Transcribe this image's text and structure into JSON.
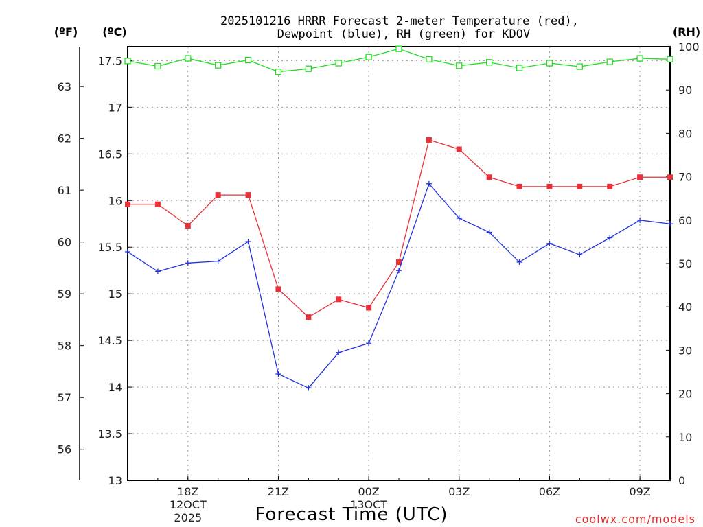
{
  "chart_data": {
    "type": "line",
    "title_lines": [
      "2025101216 HRRR Forecast 2-meter Temperature (red),",
      "Dewpoint (blue), RH (green) for KDOV"
    ],
    "units": {
      "fahrenheit": "(ºF)",
      "celsius": "(ºC)",
      "rh": "(RH)"
    },
    "xlabel": "Forecast Time (UTC)",
    "credit": "coolwx.com/models",
    "x_hours": [
      16,
      17,
      18,
      19,
      20,
      21,
      22,
      23,
      24,
      25,
      26,
      27,
      28,
      29,
      30,
      31,
      32,
      33,
      34
    ],
    "xlim": [
      16,
      34
    ],
    "x_ticks": [
      {
        "hour": 18,
        "label": "18Z",
        "sub": [
          "12OCT",
          "2025"
        ]
      },
      {
        "hour": 21,
        "label": "21Z",
        "sub": []
      },
      {
        "hour": 24,
        "label": "00Z",
        "sub": [
          "13OCT"
        ]
      },
      {
        "hour": 27,
        "label": "03Z",
        "sub": []
      },
      {
        "hour": 30,
        "label": "06Z",
        "sub": []
      },
      {
        "hour": 33,
        "label": "09Z",
        "sub": []
      }
    ],
    "celsius_axis": {
      "ylim": [
        13,
        17.65
      ],
      "ticks": [
        "13",
        "13.5",
        "14",
        "14.5",
        "15",
        "15.5",
        "16",
        "16.5",
        "17",
        "17.5"
      ]
    },
    "fahrenheit_axis": {
      "ticks": [
        "56",
        "57",
        "58",
        "59",
        "60",
        "61",
        "62",
        "63"
      ]
    },
    "rh_axis": {
      "ylim": [
        0,
        100
      ],
      "ticks": [
        "0",
        "10",
        "20",
        "30",
        "40",
        "50",
        "60",
        "70",
        "80",
        "90",
        "100"
      ]
    },
    "series": [
      {
        "name": "Temperature",
        "axis": "celsius",
        "color": "#e8313a",
        "marker": "filled-square",
        "values": [
          15.96,
          15.96,
          15.73,
          16.06,
          16.06,
          15.05,
          14.75,
          14.94,
          14.85,
          15.34,
          16.65,
          16.55,
          16.25,
          16.15,
          16.15,
          16.15,
          16.15,
          16.25,
          16.25
        ]
      },
      {
        "name": "Dewpoint",
        "axis": "celsius",
        "color": "#2233dd",
        "marker": "plus",
        "values": [
          15.45,
          15.24,
          15.33,
          15.35,
          15.56,
          14.14,
          13.99,
          14.37,
          14.47,
          15.25,
          16.18,
          15.81,
          15.66,
          15.34,
          15.54,
          15.42,
          15.6,
          15.79,
          15.75
        ]
      },
      {
        "name": "RH",
        "axis": "rh",
        "color": "#22dd22",
        "marker": "open-square",
        "values": [
          96.7,
          95.5,
          97.3,
          95.7,
          96.9,
          94.2,
          94.9,
          96.2,
          97.6,
          99.5,
          97.1,
          95.6,
          96.4,
          95.1,
          96.2,
          95.4,
          96.5,
          97.3,
          97.1
        ]
      }
    ]
  }
}
